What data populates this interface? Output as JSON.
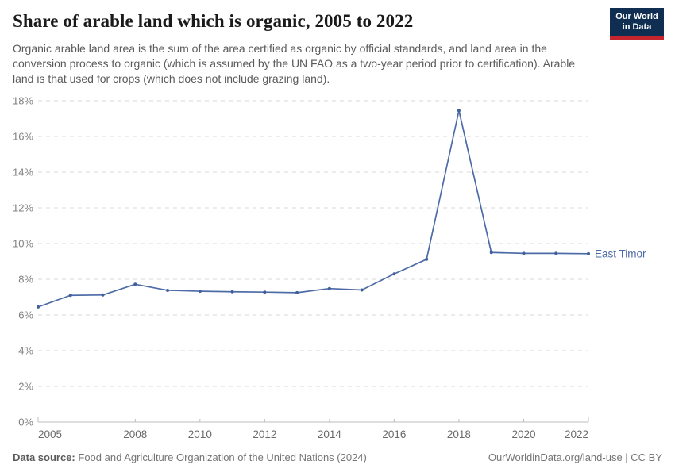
{
  "header": {
    "title": "Share of arable land which is organic, 2005 to 2022",
    "subtitle": "Organic arable land area is the sum of the area certified as organic by official standards, and land area in the conversion process to organic (which is assumed by the UN FAO as a two-year period prior to certification). Arable land is that used for crops (which does not include grazing land).",
    "logo": {
      "line1": "Our World",
      "line2": "in Data"
    }
  },
  "chart_data": {
    "type": "line",
    "title": "Share of arable land which is organic, 2005 to 2022",
    "x": [
      2005,
      2006,
      2007,
      2008,
      2009,
      2010,
      2011,
      2012,
      2013,
      2014,
      2015,
      2016,
      2017,
      2018,
      2019,
      2020,
      2021,
      2022
    ],
    "series": [
      {
        "name": "East Timor",
        "color": "#4d6ba6",
        "values": [
          6.45,
          7.1,
          7.12,
          7.72,
          7.38,
          7.33,
          7.3,
          7.28,
          7.25,
          7.48,
          7.4,
          8.3,
          9.12,
          17.45,
          9.5,
          9.45,
          9.45,
          9.43
        ]
      }
    ],
    "ylim": [
      0,
      18
    ],
    "ytick_step": 2,
    "ytick_suffix": "%",
    "xticks": [
      2005,
      2008,
      2010,
      2012,
      2014,
      2016,
      2018,
      2020,
      2022
    ],
    "grid": "horizontal-dashed",
    "legend_position": "end-of-line"
  },
  "footer": {
    "source_label": "Data source:",
    "source_text": "Food and Agriculture Organization of the United Nations (2024)",
    "credit": "OurWorldinData.org/land-use | CC BY"
  },
  "colors": {
    "accent": "#4d6ba6",
    "marker": "#40609d",
    "logo_bg": "#0f2e52",
    "logo_stripe": "#c7252d",
    "grid": "#dadada",
    "axis": "#bdbdbd",
    "y_label": "#818181",
    "x_label": "#696969"
  }
}
